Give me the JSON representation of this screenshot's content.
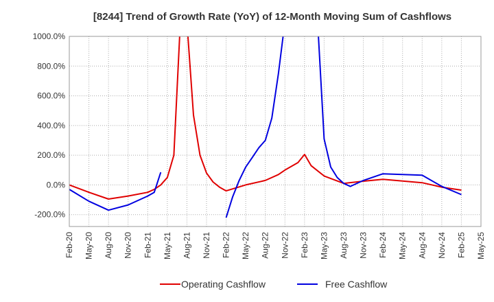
{
  "chart_data": {
    "type": "line",
    "title": "[8244]  Trend of Growth Rate (YoY) of 12-Month Moving Sum of Cashflows",
    "xlabel": "",
    "ylabel": "",
    "ylim": [
      -280,
      1000
    ],
    "y_ticks": [
      1000,
      800,
      600,
      400,
      200,
      0,
      -200
    ],
    "y_tick_labels": [
      "1000.0%",
      "800.0%",
      "600.0%",
      "400.0%",
      "200.0%",
      "0.0%",
      "-200.0%"
    ],
    "x_tick_labels": [
      "Feb-20",
      "May-20",
      "Aug-20",
      "Nov-20",
      "Feb-21",
      "May-21",
      "Aug-21",
      "Nov-21",
      "Feb-22",
      "May-22",
      "Aug-22",
      "Nov-22",
      "Feb-23",
      "May-23",
      "Aug-23",
      "Nov-23",
      "Feb-24",
      "May-24",
      "Aug-24",
      "Nov-24",
      "Feb-25",
      "May-25"
    ],
    "grid": true,
    "legend_position": "bottom",
    "series": [
      {
        "name": "Operating Cashflow",
        "color": "#e00000",
        "points": [
          [
            "Feb-20",
            0
          ],
          [
            "May-20",
            -50
          ],
          [
            "Aug-20",
            -95
          ],
          [
            "Nov-20",
            -75
          ],
          [
            "Feb-21",
            -50
          ],
          [
            "Mar-21",
            -30
          ],
          [
            "Apr-21",
            0
          ],
          [
            "May-21",
            50
          ],
          [
            "Jun-21",
            200
          ],
          [
            "Jul-21",
            1100
          ],
          [
            "Aug-21",
            1100
          ],
          [
            "Sep-21",
            470
          ],
          [
            "Oct-21",
            200
          ],
          [
            "Nov-21",
            80
          ],
          [
            "Dec-21",
            20
          ],
          [
            "Jan-22",
            -15
          ],
          [
            "Feb-22",
            -40
          ],
          [
            "May-22",
            0
          ],
          [
            "Aug-22",
            30
          ],
          [
            "Oct-22",
            70
          ],
          [
            "Nov-22",
            100
          ],
          [
            "Jan-23",
            150
          ],
          [
            "Feb-23",
            205
          ],
          [
            "Mar-23",
            130
          ],
          [
            "May-23",
            60
          ],
          [
            "Aug-23",
            10
          ],
          [
            "Nov-23",
            25
          ],
          [
            "Feb-24",
            38
          ],
          [
            "Aug-24",
            15
          ],
          [
            "Nov-24",
            -15
          ],
          [
            "Feb-25",
            -35
          ]
        ]
      },
      {
        "name": "Free Cashflow",
        "color": "#0000e0",
        "segments": [
          [
            [
              "Feb-20",
              -30
            ],
            [
              "May-20",
              -110
            ],
            [
              "Aug-20",
              -170
            ],
            [
              "Nov-20",
              -135
            ],
            [
              "Feb-21",
              -75
            ],
            [
              "Mar-21",
              -50
            ],
            [
              "Apr-21",
              85
            ]
          ],
          [
            [
              "Feb-22",
              -220
            ],
            [
              "Mar-22",
              -80
            ],
            [
              "Apr-22",
              30
            ],
            [
              "May-22",
              120
            ],
            [
              "Jun-22",
              185
            ],
            [
              "Jul-22",
              250
            ],
            [
              "Aug-22",
              300
            ],
            [
              "Sep-22",
              450
            ],
            [
              "Oct-22",
              750
            ],
            [
              "Nov-22",
              1100
            ],
            [
              "Apr-23",
              1100
            ],
            [
              "May-23",
              310
            ],
            [
              "Jun-23",
              120
            ],
            [
              "Jul-23",
              50
            ],
            [
              "Aug-23",
              10
            ],
            [
              "Sep-23",
              -10
            ],
            [
              "Nov-23",
              30
            ],
            [
              "Feb-24",
              75
            ],
            [
              "Aug-24",
              65
            ],
            [
              "Nov-24",
              -10
            ],
            [
              "Feb-25",
              -65
            ]
          ]
        ]
      }
    ]
  }
}
